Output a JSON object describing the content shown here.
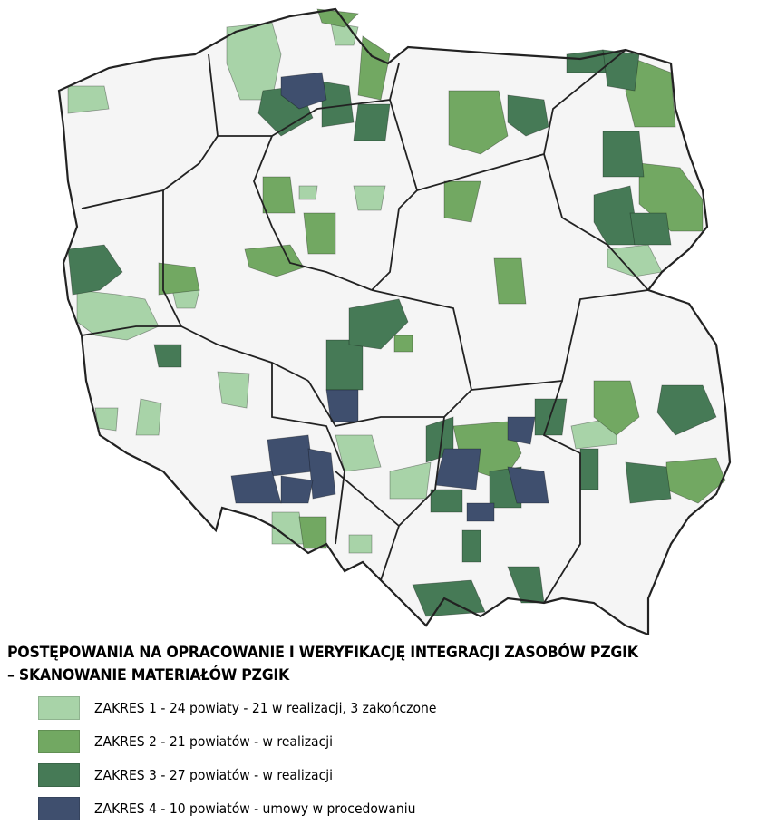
{
  "title_line1": "POSTĘPOWANIA NA OPRACOWANIE I WERYFIKACJĘ INTEGRACJI ZASOBÓW PZGIK",
  "title_line2": "– SKANOWANIE MATERIAŁÓW PZGIK",
  "colors": {
    "land": "#f5f5f5",
    "border": "#222222",
    "powiat_border": "#bbbbbb",
    "zakres1": "#a8d3a8",
    "zakres2": "#72a862",
    "zakres3": "#467a56",
    "zakres4": "#3f4f6e"
  },
  "legend": [
    {
      "key": "zakres1",
      "label": "ZAKRES 1 - 24 powiaty - 21 w realizacji, 3 zakończone"
    },
    {
      "key": "zakres2",
      "label": "ZAKRES 2 - 21 powiatów - w realizacji"
    },
    {
      "key": "zakres3",
      "label": "ZAKRES 3 - 27 powiatów - w realizacji"
    },
    {
      "key": "zakres4",
      "label": "ZAKRES 4 - 10 powiatów - umowy w procedowaniu"
    }
  ]
}
